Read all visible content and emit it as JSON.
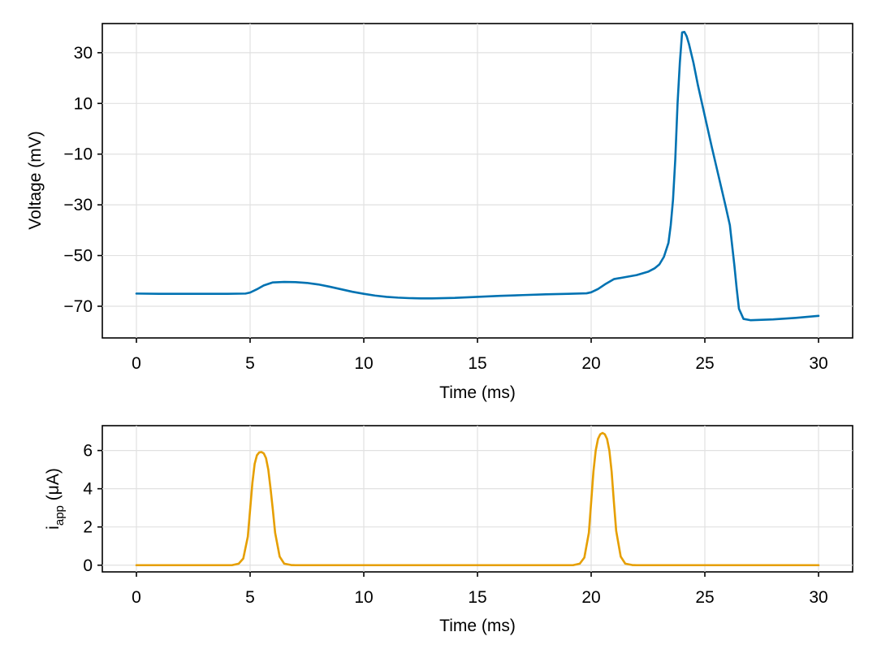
{
  "chart_data": [
    {
      "type": "line",
      "xlabel": "Time (ms)",
      "ylabel": "Voltage (mV)",
      "xlim": [
        -1.5,
        31.5
      ],
      "ylim": [
        -82.5,
        41.5
      ],
      "xticks": [
        0,
        5,
        10,
        15,
        20,
        25,
        30
      ],
      "yticks": [
        -70,
        -50,
        -30,
        -10,
        10,
        30
      ],
      "grid": true,
      "series": [
        {
          "color": "#0072b2",
          "x": [
            0,
            1,
            2,
            3,
            4,
            4.8,
            5,
            5.3,
            5.6,
            6,
            6.5,
            7,
            7.5,
            8,
            8.5,
            9,
            9.5,
            10,
            10.5,
            11,
            11.5,
            12,
            12.5,
            13,
            14,
            15,
            16,
            17,
            18,
            19,
            19.8,
            20,
            20.3,
            20.6,
            21,
            21.5,
            22,
            22.5,
            22.8,
            23,
            23.2,
            23.4,
            23.5,
            23.6,
            23.7,
            23.8,
            23.9,
            24.0,
            24.1,
            24.2,
            24.3,
            24.5,
            24.7,
            25.0,
            25.3,
            25.6,
            25.9,
            26.1,
            26.2,
            26.3,
            26.4,
            26.5,
            26.7,
            27,
            28,
            29,
            30
          ],
          "y": [
            -65,
            -65.1,
            -65.1,
            -65.1,
            -65.1,
            -65,
            -64.6,
            -63.3,
            -61.8,
            -60.6,
            -60.4,
            -60.5,
            -60.8,
            -61.4,
            -62.3,
            -63.3,
            -64.3,
            -65.1,
            -65.8,
            -66.3,
            -66.6,
            -66.8,
            -66.9,
            -66.9,
            -66.7,
            -66.3,
            -65.9,
            -65.6,
            -65.3,
            -65.1,
            -64.9,
            -64.5,
            -63.2,
            -61.4,
            -59.3,
            -58.5,
            -57.7,
            -56.4,
            -55,
            -53.5,
            -50.5,
            -45,
            -38,
            -28,
            -12,
            10,
            26,
            38,
            38.2,
            36.5,
            33.5,
            26,
            17,
            5,
            -7,
            -18.5,
            -30,
            -38,
            -46,
            -54,
            -63,
            -71,
            -75,
            -75.5,
            -75.2,
            -74.6,
            -73.8
          ]
        }
      ]
    },
    {
      "type": "line",
      "xlabel": "Time (ms)",
      "ylabel": "i",
      "ylabel_sub": "app",
      "ylabel_unit": " (μA)",
      "xlim": [
        -1.5,
        31.5
      ],
      "ylim": [
        -0.35,
        7.3
      ],
      "xticks": [
        0,
        5,
        10,
        15,
        20,
        25,
        30
      ],
      "yticks": [
        0,
        2,
        4,
        6
      ],
      "grid": true,
      "series": [
        {
          "color": "#e69f00",
          "x": [
            0,
            4.2,
            4.5,
            4.7,
            4.9,
            5.0,
            5.1,
            5.2,
            5.3,
            5.4,
            5.5,
            5.6,
            5.7,
            5.8,
            5.9,
            6.0,
            6.1,
            6.3,
            6.5,
            6.8,
            7,
            19.2,
            19.5,
            19.7,
            19.9,
            20.0,
            20.1,
            20.2,
            20.3,
            20.4,
            20.5,
            20.6,
            20.7,
            20.8,
            20.9,
            21.0,
            21.1,
            21.3,
            21.5,
            21.8,
            22,
            30
          ],
          "y": [
            0,
            0,
            0.08,
            0.35,
            1.5,
            2.9,
            4.3,
            5.3,
            5.75,
            5.9,
            5.92,
            5.85,
            5.6,
            5.0,
            4.0,
            2.9,
            1.7,
            0.45,
            0.08,
            0.01,
            0,
            0,
            0.08,
            0.4,
            1.7,
            3.3,
            4.9,
            6.0,
            6.6,
            6.85,
            6.92,
            6.85,
            6.6,
            6.0,
            4.9,
            3.3,
            1.8,
            0.45,
            0.08,
            0.01,
            0,
            0
          ]
        }
      ]
    }
  ]
}
